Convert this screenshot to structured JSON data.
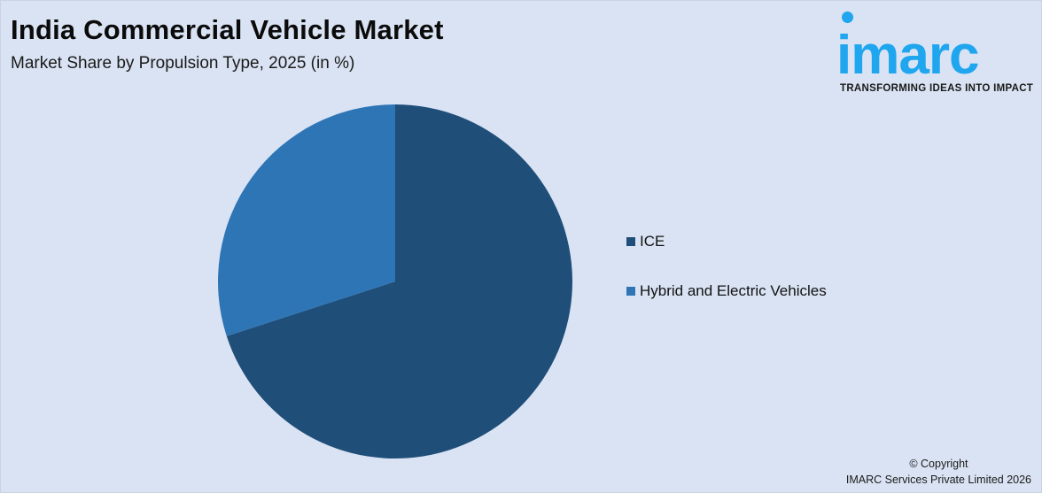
{
  "header": {
    "title": "India Commercial Vehicle Market",
    "subtitle": "Market Share by Propulsion Type, 2025 (in %)"
  },
  "logo": {
    "wordmark": "imarc",
    "tagline": "TRANSFORMING IDEAS INTO IMPACT",
    "color": "#1fa6ef"
  },
  "legend": {
    "items": [
      {
        "label": "ICE",
        "color": "#1f4e79"
      },
      {
        "label": "Hybrid and Electric Vehicles",
        "color": "#2e75b6"
      }
    ]
  },
  "footer": {
    "copyright_line1": "© Copyright",
    "copyright_line2": "IMARC Services Private Limited 2026"
  },
  "chart_data": {
    "type": "pie",
    "title": "India Commercial Vehicle Market",
    "subtitle": "Market Share by Propulsion Type, 2025 (in %)",
    "categories": [
      "ICE",
      "Hybrid and Electric Vehicles"
    ],
    "values": [
      70,
      30
    ],
    "colors": [
      "#1f4e79",
      "#2e75b6"
    ],
    "start_angle_deg": 0,
    "direction": "clockwise",
    "legend_position": "right",
    "data_labels": false
  }
}
